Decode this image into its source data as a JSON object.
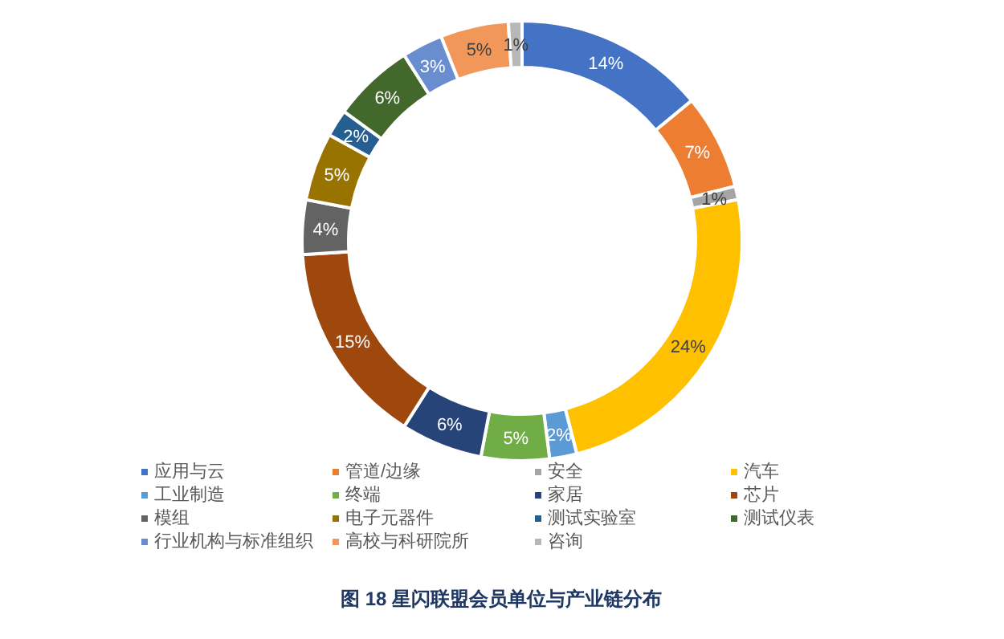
{
  "chart_data": {
    "type": "donut",
    "title": "图 18 星闪联盟会员单位与产业链分布",
    "categories": [
      "应用与云",
      "管道/边缘",
      "安全",
      "汽车",
      "工业制造",
      "终端",
      "家居",
      "芯片",
      "模组",
      "电子元器件",
      "测试实验室",
      "测试仪表",
      "行业机构与标准组织",
      "高校与科研院所",
      "咨询"
    ],
    "values": [
      14,
      7,
      1,
      24,
      2,
      5,
      6,
      15,
      4,
      5,
      2,
      6,
      3,
      5,
      1
    ],
    "value_labels": [
      "14%",
      "7%",
      "1%",
      "24%",
      "2%",
      "5%",
      "6%",
      "15%",
      "4%",
      "5%",
      "2%",
      "6%",
      "3%",
      "5%",
      "1%"
    ],
    "colors": [
      "#4472c4",
      "#ed7d31",
      "#a5a5a5",
      "#ffc000",
      "#5b9bd5",
      "#70ad47",
      "#264478",
      "#9e480e",
      "#636363",
      "#997300",
      "#255e91",
      "#43682b",
      "#698ed0",
      "#f1975a",
      "#b7b7b7"
    ],
    "legend": "bottom"
  }
}
